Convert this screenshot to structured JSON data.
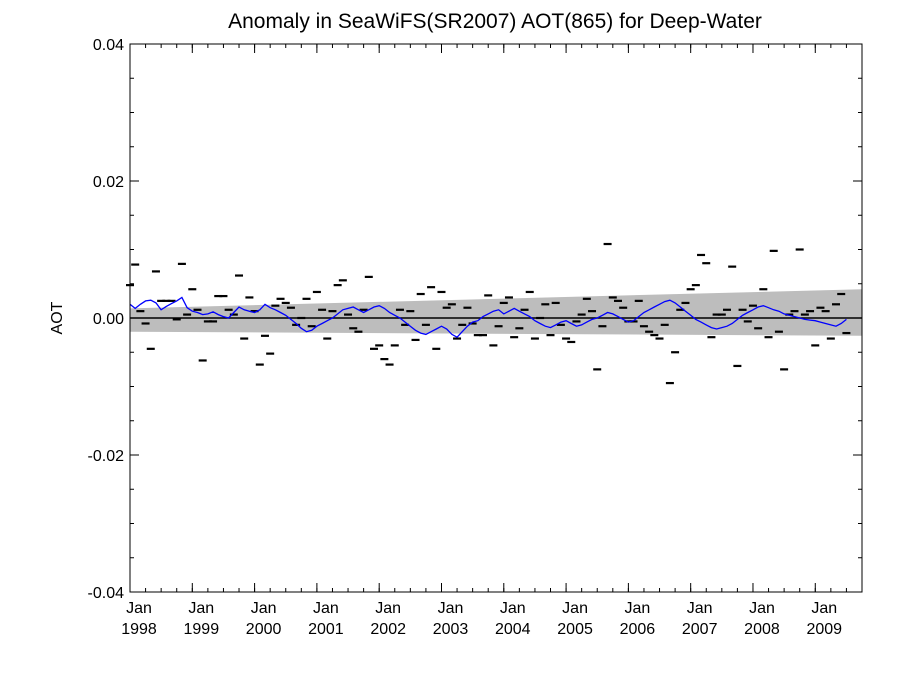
{
  "chart_data": {
    "type": "line",
    "title": "Anomaly in SeaWiFS(SR2007) AOT(865) for Deep-Water",
    "ylabel": "AOT",
    "xlabel": "",
    "xlim": [
      1998.0,
      2009.75
    ],
    "ylim": [
      -0.04,
      0.04
    ],
    "grid": false,
    "yticks": [
      {
        "value": 0.04,
        "label": "0.04"
      },
      {
        "value": 0.02,
        "label": "0.02"
      },
      {
        "value": 0.0,
        "label": "0.00"
      },
      {
        "value": -0.02,
        "label": "-0.02"
      },
      {
        "value": -0.04,
        "label": "-0.04"
      }
    ],
    "xticks": [
      {
        "value": 1998,
        "month": "Jan",
        "year": "1998"
      },
      {
        "value": 1999,
        "month": "Jan",
        "year": "1999"
      },
      {
        "value": 2000,
        "month": "Jan",
        "year": "2000"
      },
      {
        "value": 2001,
        "month": "Jan",
        "year": "2001"
      },
      {
        "value": 2002,
        "month": "Jan",
        "year": "2002"
      },
      {
        "value": 2003,
        "month": "Jan",
        "year": "2003"
      },
      {
        "value": 2004,
        "month": "Jan",
        "year": "2004"
      },
      {
        "value": 2005,
        "month": "Jan",
        "year": "2005"
      },
      {
        "value": 2006,
        "month": "Jan",
        "year": "2006"
      },
      {
        "value": 2007,
        "month": "Jan",
        "year": "2007"
      },
      {
        "value": 2008,
        "month": "Jan",
        "year": "2008"
      },
      {
        "value": 2009,
        "month": "Jan",
        "year": "2009"
      }
    ],
    "band": {
      "color": "#bdbdbd",
      "x": [
        1998.0,
        2009.75
      ],
      "upper": [
        0.0014,
        0.0042
      ],
      "lower": [
        -0.002,
        -0.0026
      ]
    },
    "zero_line": {
      "y": 0.0,
      "color": "#000000"
    },
    "series": [
      {
        "kind": "monthly_points",
        "color": "#000000",
        "start_x": 1998.0,
        "step": 0.08333,
        "values": [
          0.0048,
          0.0078,
          0.001,
          -0.0008,
          -0.0045,
          0.0068,
          0.0025,
          0.0025,
          0.0025,
          -0.0002,
          0.0079,
          0.0005,
          0.0042,
          0.0012,
          -0.0062,
          -0.0005,
          -0.0005,
          0.0032,
          0.0032,
          0.0012,
          0.0005,
          0.0062,
          -0.003,
          0.003,
          0.001,
          -0.0068,
          -0.0026,
          -0.0052,
          0.0018,
          0.0028,
          0.0022,
          0.0015,
          -0.001,
          0.0,
          0.0028,
          -0.0012,
          0.0038,
          0.0012,
          -0.003,
          0.001,
          0.0048,
          0.0055,
          0.0005,
          -0.0015,
          -0.002,
          0.0012,
          0.006,
          -0.0045,
          -0.004,
          -0.006,
          -0.0068,
          -0.004,
          0.0012,
          -0.001,
          0.001,
          -0.0032,
          0.0035,
          -0.001,
          0.0045,
          -0.0045,
          0.0038,
          0.0015,
          0.002,
          -0.003,
          -0.001,
          0.0015,
          -0.0008,
          -0.0025,
          -0.0025,
          0.0033,
          -0.004,
          -0.0012,
          0.0022,
          0.003,
          -0.0028,
          -0.0015,
          0.0012,
          0.0038,
          -0.003,
          0.0,
          0.002,
          -0.0025,
          0.0022,
          -0.001,
          -0.003,
          -0.0035,
          -0.0005,
          0.0005,
          0.0028,
          0.001,
          -0.0075,
          -0.0012,
          0.0108,
          0.003,
          0.0025,
          0.0015,
          -0.0005,
          -0.0005,
          0.0025,
          -0.0012,
          -0.002,
          -0.0025,
          -0.003,
          -0.001,
          -0.0095,
          -0.005,
          0.0012,
          0.0022,
          0.0042,
          0.0048,
          0.0092,
          0.008,
          -0.0028,
          0.0005,
          0.0005,
          0.0012,
          0.0075,
          -0.007,
          0.0012,
          -0.0005,
          0.0018,
          -0.0015,
          0.0042,
          -0.0028,
          0.0098,
          -0.002,
          -0.0075,
          0.0005,
          0.001,
          0.01,
          0.0005,
          0.001,
          -0.004,
          0.0015,
          0.001,
          -0.003,
          0.002,
          0.0035,
          -0.0022
        ]
      },
      {
        "kind": "running_mean",
        "color": "#0000ff",
        "start_x": 1998.0,
        "step": 0.08333,
        "values": [
          0.002,
          0.0014,
          0.002,
          0.0025,
          0.0026,
          0.0022,
          0.0012,
          0.0017,
          0.0021,
          0.0025,
          0.003,
          0.0015,
          0.001,
          0.0008,
          0.0005,
          0.0006,
          0.0009,
          0.0005,
          0.0002,
          0.0,
          0.0008,
          0.0016,
          0.0012,
          0.001,
          0.0008,
          0.0012,
          0.002,
          0.0015,
          0.0012,
          0.0008,
          0.0004,
          -0.0002,
          -0.0008,
          -0.0015,
          -0.002,
          -0.0018,
          -0.0012,
          -0.0008,
          -0.0004,
          0.0,
          0.0006,
          0.0012,
          0.0014,
          0.0016,
          0.0012,
          0.0008,
          0.0012,
          0.0016,
          0.0018,
          0.0014,
          0.0008,
          0.0004,
          0.0,
          -0.0006,
          -0.0012,
          -0.0018,
          -0.0022,
          -0.0024,
          -0.002,
          -0.0016,
          -0.0012,
          -0.0016,
          -0.0024,
          -0.0028,
          -0.002,
          -0.0012,
          -0.0006,
          -0.0004,
          0.0002,
          0.0006,
          0.001,
          0.0012,
          0.0006,
          0.001,
          0.0014,
          0.001,
          0.0006,
          0.0002,
          -0.0004,
          -0.0008,
          -0.0012,
          -0.0014,
          -0.001,
          -0.0006,
          -0.0004,
          -0.0008,
          -0.0012,
          -0.001,
          -0.0006,
          -0.0002,
          0.0,
          0.0004,
          0.0008,
          0.0006,
          0.0002,
          -0.0002,
          -0.0006,
          -0.0004,
          0.0002,
          0.0008,
          0.0012,
          0.0016,
          0.002,
          0.0024,
          0.0026,
          0.0022,
          0.0016,
          0.001,
          0.0004,
          -0.0002,
          -0.0006,
          -0.001,
          -0.0014,
          -0.0016,
          -0.0014,
          -0.0012,
          -0.0008,
          -0.0002,
          0.0004,
          0.0008,
          0.0012,
          0.0016,
          0.0018,
          0.0015,
          0.0012,
          0.001,
          0.0006,
          0.0004,
          0.0002,
          0.0,
          -0.0002,
          -0.0003,
          -0.0004,
          -0.0006,
          -0.0008,
          -0.001,
          -0.0012,
          -0.0008,
          -0.0002
        ]
      }
    ]
  }
}
